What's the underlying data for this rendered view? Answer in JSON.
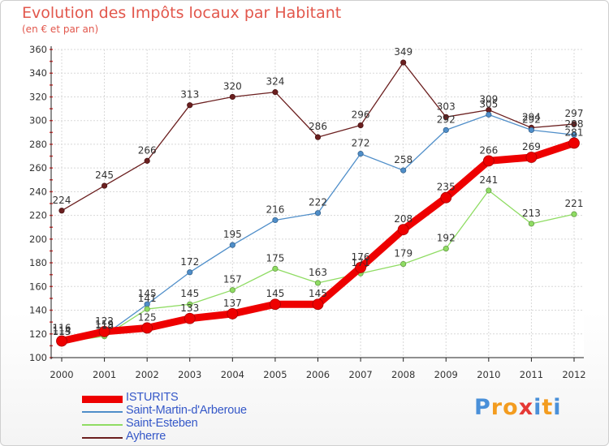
{
  "title": "Evolution des Impôts locaux par Habitant",
  "subtitle": "(en € et par an)",
  "logo": {
    "text": "Proxiti",
    "letters": [
      "P",
      "r",
      "o",
      "x",
      "i",
      "t",
      "i"
    ],
    "colors": [
      "#4a90d9",
      "#f39c1f",
      "#f39c1f",
      "#e53935",
      "#4a90d9",
      "#f39c1f",
      "#4a90d9"
    ]
  },
  "chart_data": {
    "type": "line",
    "title": "Evolution des Impôts locaux par Habitant",
    "subtitle": "(en € et par an)",
    "xlabel": "",
    "ylabel": "",
    "x": [
      "2000",
      "2001",
      "2002",
      "2003",
      "2004",
      "2005",
      "2006",
      "2007",
      "2008",
      "2009",
      "2010",
      "2011",
      "2012"
    ],
    "ylim": [
      100,
      360
    ],
    "yticks": [
      100,
      120,
      140,
      160,
      180,
      200,
      220,
      240,
      260,
      280,
      300,
      320,
      340,
      360
    ],
    "grid": true,
    "legend_position": "bottom-left",
    "series": [
      {
        "name": "Ayherre",
        "color": "#6b1f1f",
        "values": [
          224,
          245,
          266,
          313,
          320,
          324,
          286,
          296,
          349,
          303,
          309,
          294,
          297
        ]
      },
      {
        "name": "Saint-Martin-d'Arberoue",
        "color": "#4f8ec9",
        "values": [
          116,
          119,
          145,
          172,
          195,
          216,
          222,
          272,
          258,
          292,
          305,
          292,
          288
        ]
      },
      {
        "name": "Saint-Esteben",
        "color": "#8fdc63",
        "values": [
          113,
          118,
          141,
          145,
          157,
          175,
          163,
          171,
          179,
          192,
          241,
          213,
          221
        ]
      },
      {
        "name": "ISTURITS",
        "color": "#ee0000",
        "values": [
          114,
          122,
          125,
          133,
          137,
          145,
          145,
          176,
          208,
          235,
          266,
          269,
          281
        ]
      }
    ],
    "legend": [
      "ISTURITS",
      "Saint-Martin-d'Arberoue",
      "Saint-Esteben",
      "Ayherre"
    ]
  }
}
